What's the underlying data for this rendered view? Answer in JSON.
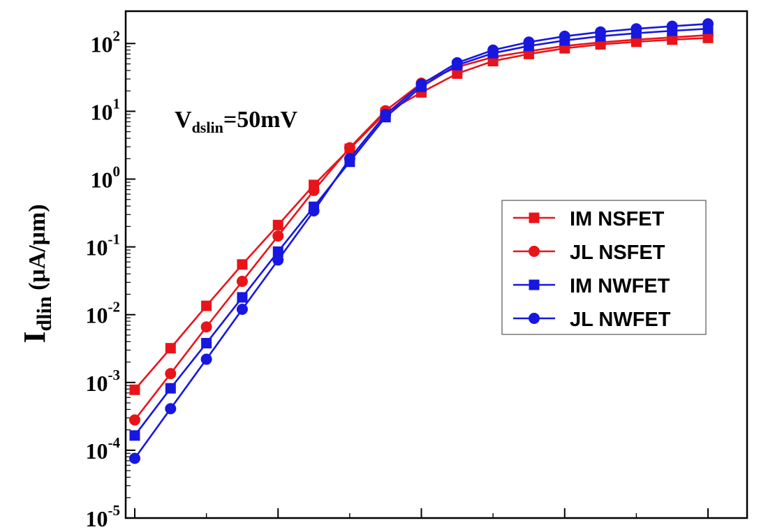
{
  "chart_data": {
    "type": "line",
    "title": "",
    "xlabel": "",
    "ylabel": "I",
    "ylabel_sub": "dlin",
    "ylabel_unit": " (μA/μm)",
    "yscale": "log",
    "ylim": [
      1e-05,
      300
    ],
    "xlim": [
      0,
      8
    ],
    "y_ticks": [
      {
        "value": 1e-05,
        "base": "10",
        "exp": "-5"
      },
      {
        "value": 0.0001,
        "base": "10",
        "exp": "-4"
      },
      {
        "value": 0.001,
        "base": "10",
        "exp": "-3"
      },
      {
        "value": 0.01,
        "base": "10",
        "exp": "-2"
      },
      {
        "value": 0.1,
        "base": "10",
        "exp": "-1"
      },
      {
        "value": 1,
        "base": "10",
        "exp": "0"
      },
      {
        "value": 10,
        "base": "10",
        "exp": "1"
      },
      {
        "value": 100,
        "base": "10",
        "exp": "2"
      }
    ],
    "x_major_ticks": [
      0,
      2,
      4,
      6,
      8
    ],
    "annotation": {
      "main": "V",
      "sub": "dslin",
      "rest": "=50mV"
    },
    "legend_position": "right",
    "x": [
      0,
      0.5,
      1,
      1.5,
      2,
      2.5,
      3,
      3.5,
      4,
      4.5,
      5,
      5.5,
      6,
      6.5,
      7,
      7.5,
      8
    ],
    "series": [
      {
        "name": "IM NSFET",
        "color": "#e8141a",
        "marker": "square",
        "values": [
          0.00078,
          0.0032,
          0.0135,
          0.055,
          0.21,
          0.82,
          2.8,
          9.5,
          19,
          36,
          55,
          70,
          85,
          97,
          106,
          114,
          121
        ]
      },
      {
        "name": "JL NSFET",
        "color": "#e8141a",
        "marker": "circle",
        "values": [
          0.00028,
          0.00135,
          0.0066,
          0.031,
          0.145,
          0.68,
          2.9,
          10.2,
          26,
          45,
          63,
          77,
          92,
          104,
          114,
          123,
          133
        ]
      },
      {
        "name": "IM NWFET",
        "color": "#1717e0",
        "marker": "square",
        "values": [
          0.000165,
          0.00082,
          0.0038,
          0.018,
          0.085,
          0.39,
          1.8,
          8.2,
          23,
          48,
          72,
          92,
          111,
          128,
          142,
          154,
          165
        ]
      },
      {
        "name": "JL NWFET",
        "color": "#1717e0",
        "marker": "circle",
        "values": [
          7.6e-05,
          0.00041,
          0.0022,
          0.012,
          0.064,
          0.34,
          2.0,
          9.0,
          25,
          52,
          80,
          105,
          128,
          148,
          165,
          180,
          195
        ]
      }
    ]
  }
}
